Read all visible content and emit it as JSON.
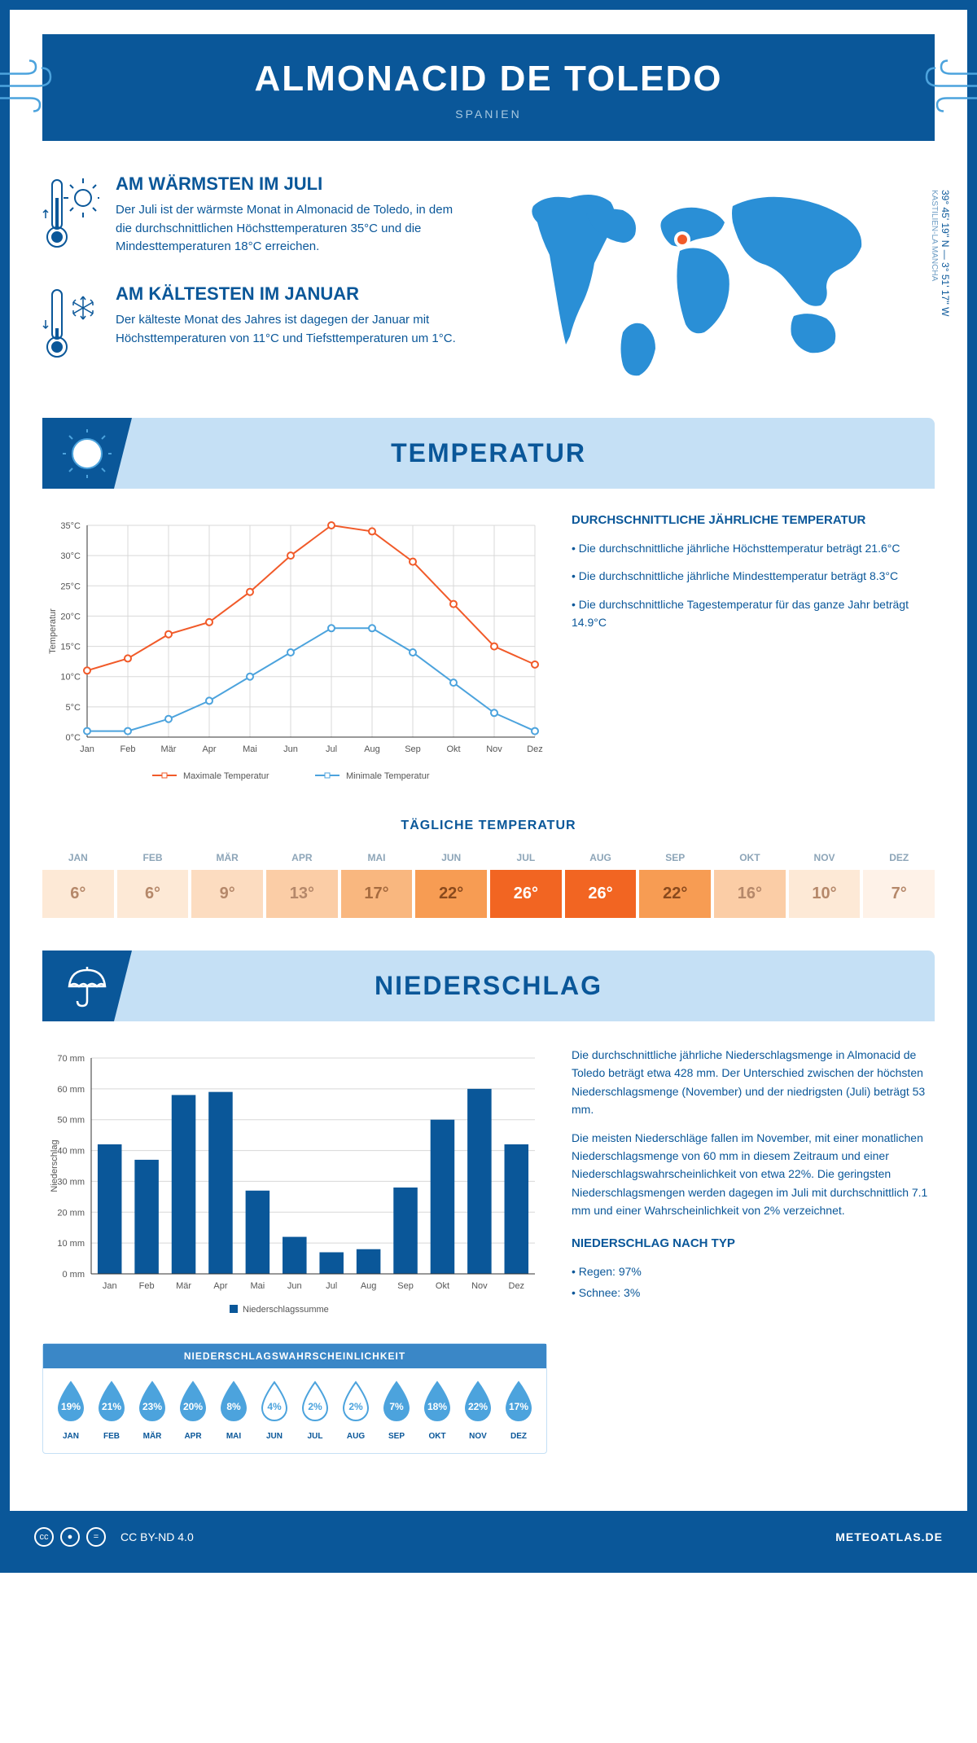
{
  "header": {
    "title": "ALMONACID DE TOLEDO",
    "subtitle": "SPANIEN"
  },
  "intro": {
    "warmest": {
      "title": "AM WÄRMSTEN IM JULI",
      "text": "Der Juli ist der wärmste Monat in Almonacid de Toledo, in dem die durchschnittlichen Höchsttemperaturen 35°C und die Mindesttemperaturen 18°C erreichen."
    },
    "coldest": {
      "title": "AM KÄLTESTEN IM JANUAR",
      "text": "Der kälteste Monat des Jahres ist dagegen der Januar mit Höchsttemperaturen von 11°C und Tiefsttemperaturen um 1°C."
    },
    "coords": "39° 45' 19'' N — 3° 51' 17'' W",
    "region": "KASTILIEN-LA MANCHA"
  },
  "section_temp": {
    "banner": "TEMPERATUR",
    "subheading": "TÄGLICHE TEMPERATUR",
    "info_title": "DURCHSCHNITTLICHE JÄHRLICHE TEMPERATUR",
    "bullets": [
      "• Die durchschnittliche jährliche Höchsttemperatur beträgt 21.6°C",
      "• Die durchschnittliche jährliche Mindesttemperatur beträgt 8.3°C",
      "• Die durchschnittliche Tagestemperatur für das ganze Jahr beträgt 14.9°C"
    ]
  },
  "temp_chart": {
    "type": "line",
    "months": [
      "Jan",
      "Feb",
      "Mär",
      "Apr",
      "Mai",
      "Jun",
      "Jul",
      "Aug",
      "Sep",
      "Okt",
      "Nov",
      "Dez"
    ],
    "max_series": {
      "label": "Maximale Temperatur",
      "color": "#f15a29",
      "values": [
        11,
        13,
        17,
        19,
        24,
        30,
        35,
        34,
        29,
        22,
        15,
        12
      ]
    },
    "min_series": {
      "label": "Minimale Temperatur",
      "color": "#4ca3dd",
      "values": [
        1,
        1,
        3,
        6,
        10,
        14,
        18,
        18,
        14,
        9,
        4,
        1
      ]
    },
    "ylabel": "Temperatur",
    "ylim": [
      0,
      35
    ],
    "ytick_step": 5,
    "grid_color": "#d8d8d8",
    "axis_color": "#333",
    "marker": "circle",
    "marker_fill": "#ffffff",
    "line_width": 2
  },
  "daily_temp": {
    "months": [
      "JAN",
      "FEB",
      "MÄR",
      "APR",
      "MAI",
      "JUN",
      "JUL",
      "AUG",
      "SEP",
      "OKT",
      "NOV",
      "DEZ"
    ],
    "values": [
      "6°",
      "6°",
      "9°",
      "13°",
      "17°",
      "22°",
      "26°",
      "26°",
      "22°",
      "16°",
      "10°",
      "7°"
    ],
    "cell_bg": [
      "#fde9d6",
      "#fde9d6",
      "#fcdcc0",
      "#fbcda6",
      "#f9b77f",
      "#f79c53",
      "#f26522",
      "#f26522",
      "#f79c53",
      "#fbcda6",
      "#fde9d6",
      "#fef2e8"
    ],
    "cell_fg": [
      "#b5886a",
      "#b5886a",
      "#b5886a",
      "#b5886a",
      "#a66b3f",
      "#8a4a1d",
      "#ffffff",
      "#ffffff",
      "#8a4a1d",
      "#b5886a",
      "#b5886a",
      "#b5886a"
    ]
  },
  "section_precip": {
    "banner": "NIEDERSCHLAG",
    "para1": "Die durchschnittliche jährliche Niederschlagsmenge in Almonacid de Toledo beträgt etwa 428 mm. Der Unterschied zwischen der höchsten Niederschlagsmenge (November) und der niedrigsten (Juli) beträgt 53 mm.",
    "para2": "Die meisten Niederschläge fallen im November, mit einer monatlichen Niederschlagsmenge von 60 mm in diesem Zeitraum und einer Niederschlagswahrscheinlichkeit von etwa 22%. Die geringsten Niederschlagsmengen werden dagegen im Juli mit durchschnittlich 7.1 mm und einer Wahrscheinlichkeit von 2% verzeichnet.",
    "type_title": "NIEDERSCHLAG NACH TYP",
    "type_items": [
      "• Regen: 97%",
      "• Schnee: 3%"
    ]
  },
  "precip_chart": {
    "type": "bar",
    "months": [
      "Jan",
      "Feb",
      "Mär",
      "Apr",
      "Mai",
      "Jun",
      "Jul",
      "Aug",
      "Sep",
      "Okt",
      "Nov",
      "Dez"
    ],
    "values": [
      42,
      37,
      58,
      59,
      27,
      12,
      7,
      8,
      28,
      50,
      60,
      42
    ],
    "bar_color": "#0a5799",
    "ylabel": "Niederschlag",
    "legend": "Niederschlagssumme",
    "ylim": [
      0,
      70
    ],
    "ytick_step": 10,
    "grid_color": "#d8d8d8",
    "axis_color": "#333",
    "bar_width": 0.65
  },
  "precip_prob": {
    "title": "NIEDERSCHLAGSWAHRSCHEINLICHKEIT",
    "months": [
      "JAN",
      "FEB",
      "MÄR",
      "APR",
      "MAI",
      "JUN",
      "JUL",
      "AUG",
      "SEP",
      "OKT",
      "NOV",
      "DEZ"
    ],
    "values": [
      "19%",
      "21%",
      "23%",
      "20%",
      "8%",
      "4%",
      "2%",
      "2%",
      "7%",
      "18%",
      "22%",
      "17%"
    ],
    "filled": [
      true,
      true,
      true,
      true,
      true,
      false,
      false,
      false,
      true,
      true,
      true,
      true
    ],
    "fill_color": "#4ca3dd",
    "empty_color": "#ffffff",
    "stroke": "#4ca3dd"
  },
  "footer": {
    "license": "CC BY-ND 4.0",
    "site": "METEOATLAS.DE"
  },
  "colors": {
    "primary": "#0a5799",
    "light_blue": "#c5e0f5",
    "accent": "#4ca3dd"
  }
}
